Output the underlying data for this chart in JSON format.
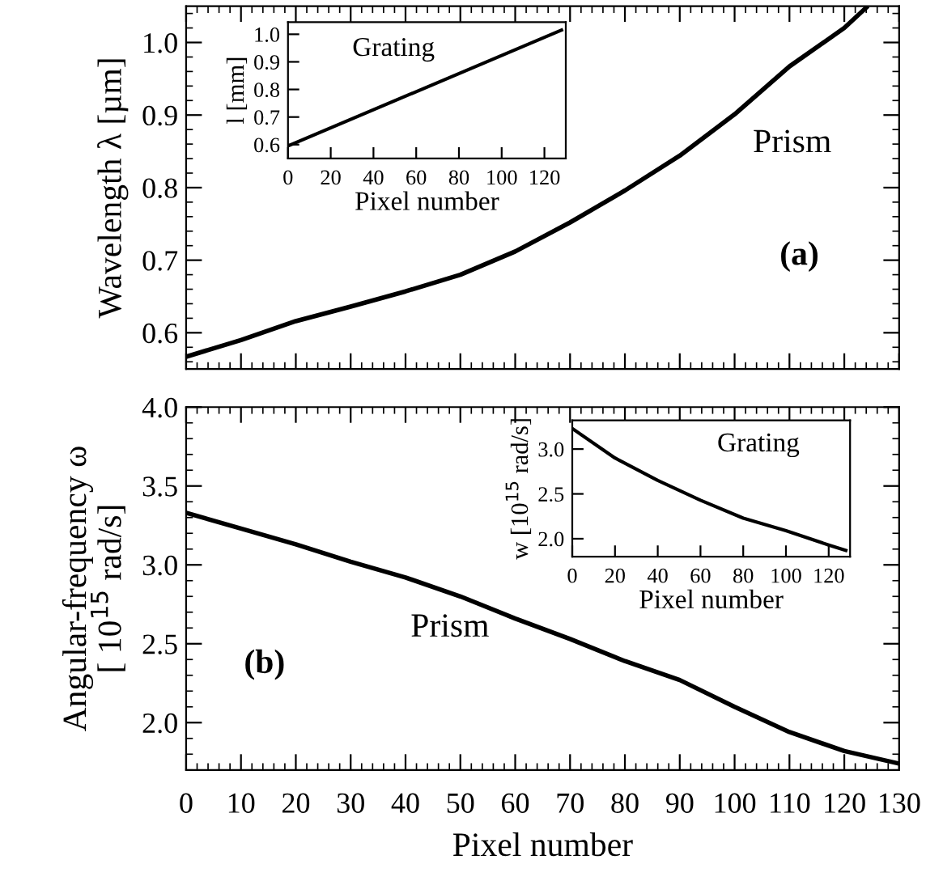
{
  "chart_data": [
    {
      "type": "line",
      "ylabel": "Wavelength λ [µm]",
      "annotations": [
        "(a)"
      ],
      "tick_labels": "y",
      "xlim": [
        0,
        130
      ],
      "xticks": [
        0,
        10,
        20,
        30,
        40,
        50,
        60,
        70,
        80,
        90,
        100,
        110,
        120,
        130
      ],
      "ylim": [
        0.55,
        1.05
      ],
      "yticks": [
        0.6,
        0.7,
        0.8,
        0.9,
        {
          "value": 1.0,
          "label": "1.0"
        }
      ],
      "grid": false,
      "legend": "right",
      "series": [
        {
          "name": "Prism",
          "color": "#000000",
          "x": [
            0,
            10,
            20,
            30,
            40,
            50,
            60,
            70,
            80,
            90,
            100,
            110,
            120,
            124
          ],
          "values": [
            0.567,
            0.59,
            0.616,
            0.636,
            0.657,
            0.68,
            0.712,
            0.752,
            0.796,
            0.844,
            0.901,
            0.967,
            1.02,
            1.048
          ]
        }
      ]
    },
    {
      "type": "line",
      "ylabel": "l [mm]",
      "xlabel": "Pixel number",
      "xlim": [
        0,
        130
      ],
      "xticks": [
        0,
        20,
        40,
        60,
        80,
        100,
        120
      ],
      "ylim": [
        0.55,
        1.044
      ],
      "yticks": [
        0.6,
        0.7,
        0.8,
        0.9,
        {
          "value": 1.0,
          "label": "1.0"
        }
      ],
      "grid": false,
      "legend": "top left",
      "series": [
        {
          "name": "Grating",
          "color": "#000000",
          "x": [
            0,
            128
          ],
          "values": [
            0.595,
            1.015
          ]
        }
      ]
    },
    {
      "type": "line",
      "ylabel": "Angular-frequency ω\n[ 10$^{15}$ rad/s]",
      "xlabel": "Pixel number",
      "annotations": [
        "(b)"
      ],
      "xlim": [
        0,
        130
      ],
      "xticks": [
        0,
        10,
        20,
        30,
        40,
        50,
        60,
        70,
        80,
        90,
        100,
        110,
        120,
        130
      ],
      "ylim": [
        1.7,
        4.0
      ],
      "yticks": [
        {
          "value": 2.0,
          "label": "2.0"
        },
        2.5,
        {
          "value": 3.0,
          "label": "3.0"
        },
        3.5,
        {
          "value": 4.0,
          "label": "4.0"
        }
      ],
      "grid": false,
      "legend": "center",
      "series": [
        {
          "name": "Prism",
          "color": "#000000",
          "x": [
            0,
            10,
            20,
            30,
            40,
            50,
            60,
            70,
            80,
            90,
            100,
            110,
            120,
            130
          ],
          "values": [
            3.33,
            3.23,
            3.13,
            3.02,
            2.92,
            2.8,
            2.66,
            2.53,
            2.39,
            2.27,
            2.1,
            1.94,
            1.82,
            1.74
          ]
        }
      ]
    },
    {
      "type": "line",
      "ylabel": "w [10$^{15}$ rad/s]",
      "xlabel": "Pixel number",
      "xlim": [
        0,
        130
      ],
      "xticks": [
        0,
        20,
        40,
        60,
        80,
        100,
        120
      ],
      "ylim": [
        1.8,
        3.32
      ],
      "yticks": [
        {
          "value": 2.0,
          "label": "2.0"
        },
        2.5,
        {
          "value": 3.0,
          "label": "3.0"
        }
      ],
      "grid": false,
      "legend": "top right",
      "series": [
        {
          "name": "Grating",
          "color": "#000000",
          "x": [
            0,
            20,
            40,
            60,
            80,
            100,
            120,
            128
          ],
          "values": [
            3.23,
            2.9,
            2.65,
            2.43,
            2.23,
            2.09,
            1.93,
            1.87
          ]
        }
      ]
    }
  ]
}
